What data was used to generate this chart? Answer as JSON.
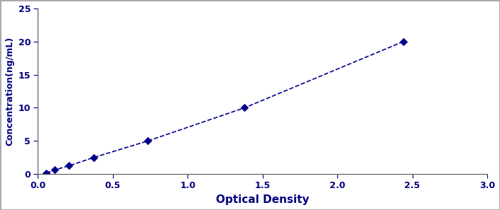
{
  "x_data": [
    0.057,
    0.113,
    0.208,
    0.374,
    0.735,
    1.38,
    2.44
  ],
  "y_data": [
    0.156,
    0.625,
    1.25,
    2.5,
    5.0,
    10.0,
    20.0
  ],
  "line_color": "#00008B",
  "marker_color": "#00008B",
  "marker_style": "D",
  "marker_size": 5,
  "line_width": 1.2,
  "line_style": "--",
  "xlabel": "Optical Density",
  "ylabel": "Concentration(ng/mL)",
  "xlim": [
    0,
    3
  ],
  "ylim": [
    0,
    25
  ],
  "xticks": [
    0,
    0.5,
    1,
    1.5,
    2,
    2.5,
    3
  ],
  "yticks": [
    0,
    5,
    10,
    15,
    20,
    25
  ],
  "xlabel_fontsize": 11,
  "ylabel_fontsize": 9,
  "tick_fontsize": 9,
  "background_color": "#ffffff",
  "outer_border_color": "#aaaaaa"
}
